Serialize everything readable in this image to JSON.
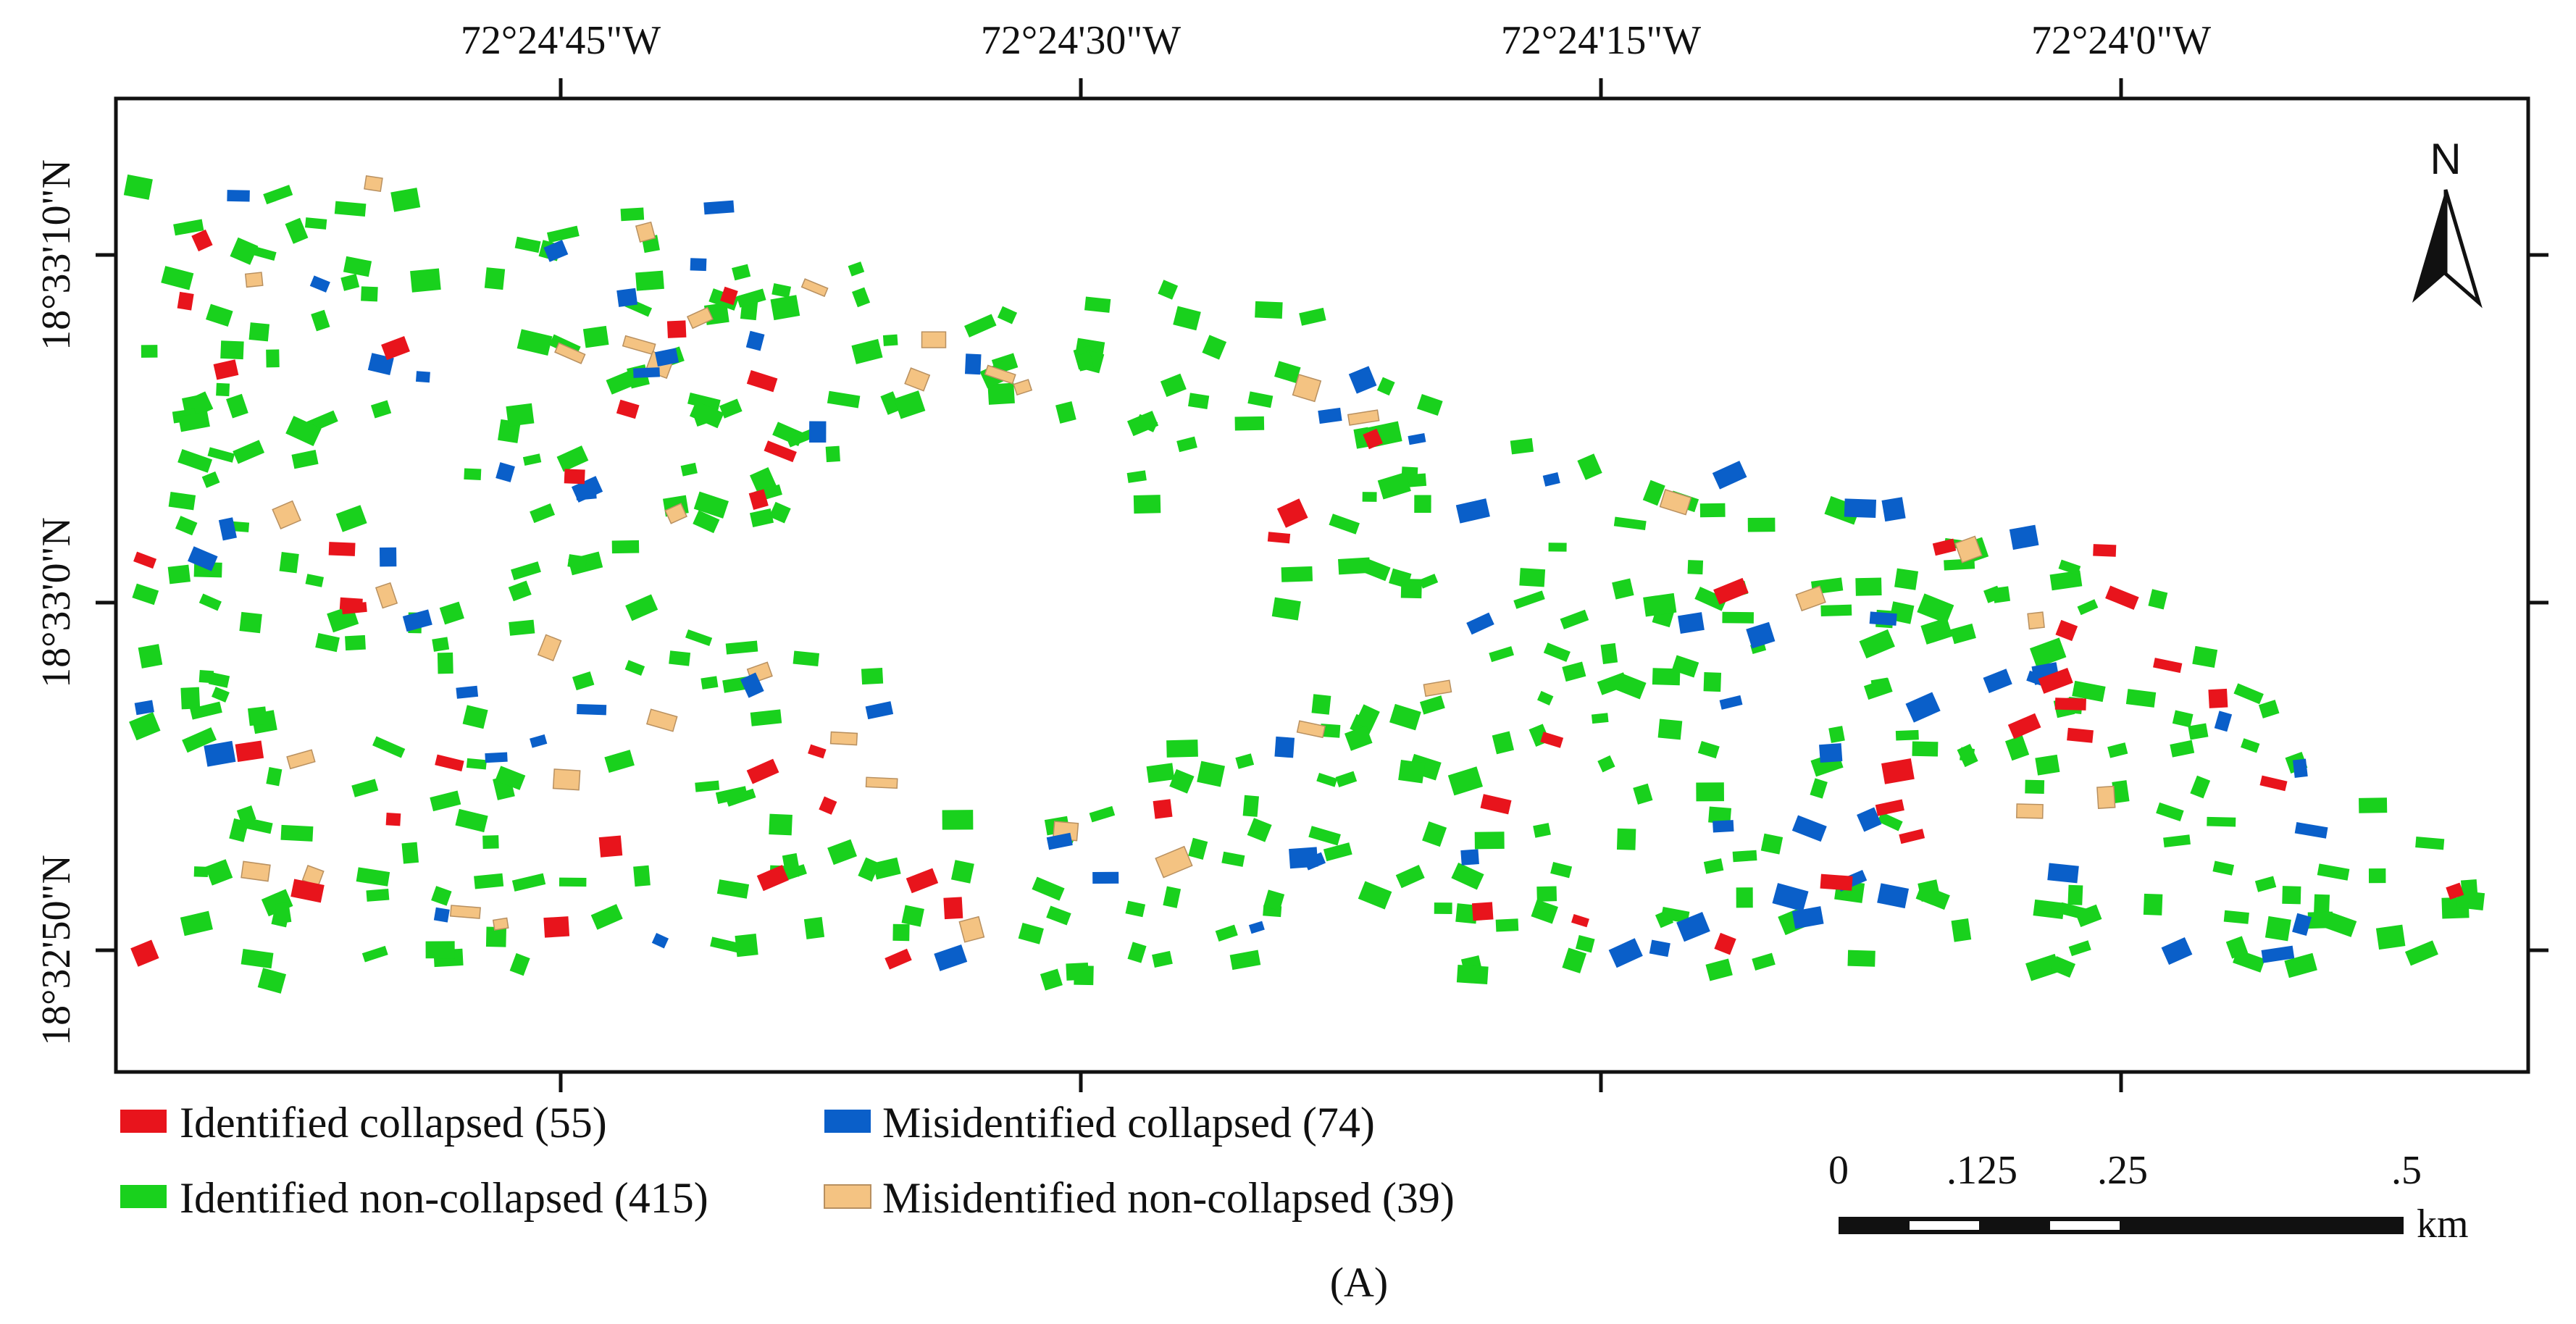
{
  "map": {
    "title_caption": "(A)",
    "longitude_labels": [
      "72°24'45\"W",
      "72°24'30\"W",
      "72°24'15\"W",
      "72°24'0\"W"
    ],
    "latitude_labels": [
      "18°33'10\"N",
      "18°33'0\"N",
      "18°32'50\"N"
    ],
    "north_label": "N"
  },
  "legend": {
    "items": [
      {
        "key": "identified_collapsed",
        "label": "Identified collapsed (55)",
        "color": "#e8141c"
      },
      {
        "key": "misidentified_collapsed",
        "label": "Misidentified collapsed (74)",
        "color": "#0a5fc9"
      },
      {
        "key": "identified_non_collapsed",
        "label": "Identified non-collapsed (415)",
        "color": "#19d11d"
      },
      {
        "key": "misidentified_non_collapsed",
        "label": "Misidentified non-collapsed (39)",
        "color": "#f4c382"
      }
    ]
  },
  "scale_bar": {
    "ticks": [
      "0",
      ".125",
      ".25",
      ".5"
    ],
    "unit": "km"
  },
  "counts": {
    "identified_collapsed": 55,
    "misidentified_collapsed": 74,
    "identified_non_collapsed": 415,
    "misidentified_non_collapsed": 39
  }
}
